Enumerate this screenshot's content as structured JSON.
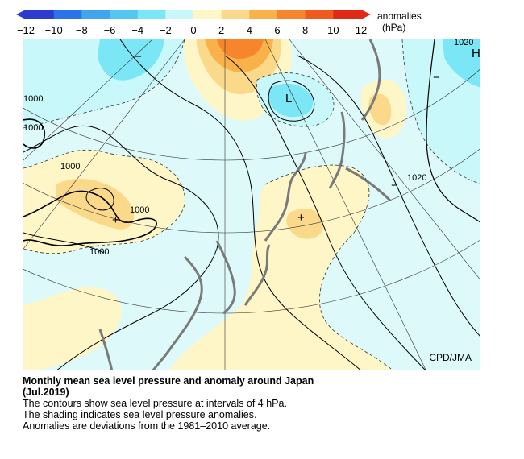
{
  "legend": {
    "ticks": [
      "−12",
      "−10",
      "−8",
      "−6",
      "−4",
      "−2",
      "0",
      "2",
      "4",
      "6",
      "8",
      "10",
      "12"
    ],
    "units_line1": "anomalies",
    "units_line2": "(hPa)",
    "colors": [
      "#2d3ccf",
      "#2a73e8",
      "#3fa6ee",
      "#54c6f2",
      "#7be6f5",
      "#c8f8fa",
      "#fff6c8",
      "#fbd98a",
      "#f9b24a",
      "#f6852b",
      "#f15a1f",
      "#e02a17"
    ]
  },
  "map": {
    "credit": "CPD/JMA",
    "contour_labels": [
      "1000",
      "1000",
      "1000",
      "1000",
      "1000",
      "1020",
      "1020"
    ],
    "symbols": {
      "low": "L",
      "high": "H",
      "plus": "+",
      "minus": "−"
    }
  },
  "caption": {
    "title": "Monthly mean sea level pressure and anomaly around Japan",
    "period": "(Jul.2019)",
    "line1": "The contours show sea level pressure at intervals of 4 hPa.",
    "line2": "The shading indicates sea level pressure anomalies.",
    "line3": "Anomalies are deviations from the 1981–2010 average."
  }
}
